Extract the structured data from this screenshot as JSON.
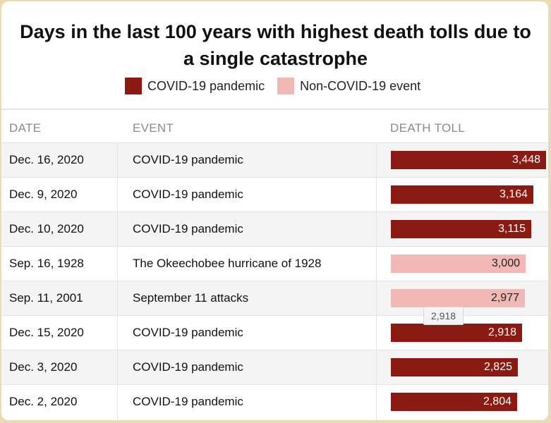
{
  "title_line1": "Days in the last 100 years with highest death tolls due to",
  "title_line2": "a single catastrophe",
  "colors": {
    "covid": "#8b1a12",
    "non_covid": "#f2b8b6",
    "covid_text": "#ffffff",
    "non_covid_text": "#222222"
  },
  "legend": [
    {
      "label": "COVID-19 pandemic",
      "color_key": "covid"
    },
    {
      "label": "Non-COVID-19 event",
      "color_key": "non_covid"
    }
  ],
  "headers": {
    "date": "DATE",
    "event": "EVENT",
    "toll": "DEATH TOLL"
  },
  "tooltip": "2,918",
  "chart_data": {
    "type": "bar",
    "title": "Days in the last 100 years with highest death tolls due to a single catastrophe",
    "xlabel": "DEATH TOLL",
    "ylabel": "",
    "xlim": [
      0,
      3448
    ],
    "series": [
      {
        "name": "COVID-19 pandemic"
      },
      {
        "name": "Non-COVID-19 event"
      }
    ],
    "rows": [
      {
        "date": "Dec. 16, 2020",
        "event": "COVID-19 pandemic",
        "value": 3448,
        "label": "3,448",
        "covid": true
      },
      {
        "date": "Dec. 9, 2020",
        "event": "COVID-19 pandemic",
        "value": 3164,
        "label": "3,164",
        "covid": true
      },
      {
        "date": "Dec. 10, 2020",
        "event": "COVID-19 pandemic",
        "value": 3115,
        "label": "3,115",
        "covid": true
      },
      {
        "date": "Sep. 16, 1928",
        "event": "The Okeechobee hurricane of 1928",
        "value": 3000,
        "label": "3,000",
        "covid": false
      },
      {
        "date": "Sep. 11, 2001",
        "event": "September 11 attacks",
        "value": 2977,
        "label": "2,977",
        "covid": false
      },
      {
        "date": "Dec. 15, 2020",
        "event": "COVID-19 pandemic",
        "value": 2918,
        "label": "2,918",
        "covid": true
      },
      {
        "date": "Dec. 3, 2020",
        "event": "COVID-19 pandemic",
        "value": 2825,
        "label": "2,825",
        "covid": true
      },
      {
        "date": "Dec. 2, 2020",
        "event": "COVID-19 pandemic",
        "value": 2804,
        "label": "2,804",
        "covid": true
      }
    ]
  }
}
